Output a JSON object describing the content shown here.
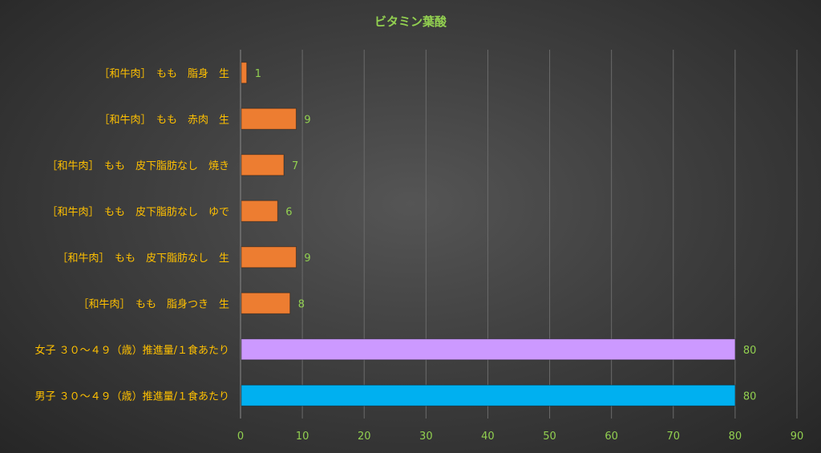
{
  "chart_data": {
    "type": "bar",
    "orientation": "horizontal",
    "title": "ビタミン葉酸",
    "xlabel": "",
    "ylabel": "",
    "xlim": [
      0,
      90
    ],
    "xticks": [
      0,
      10,
      20,
      30,
      40,
      50,
      60,
      70,
      80,
      90
    ],
    "grid": true,
    "legend": "none",
    "categories": [
      "［和牛肉］　もも　脂身　生",
      "［和牛肉］　もも　赤肉　生",
      "［和牛肉］　もも　皮下脂肪なし　焼き",
      "［和牛肉］　もも　皮下脂肪なし　ゆで",
      "［和牛肉］　もも　皮下脂肪なし　生",
      "［和牛肉］　もも　脂身つき　生",
      "女子 ３０～４９（歳）推進量/１食あたり",
      "男子 ３０～４９（歳）推進量/１食あたり"
    ],
    "values": [
      1,
      9,
      7,
      6,
      9,
      8,
      80,
      80
    ],
    "colors": [
      "#ed7d31",
      "#ed7d31",
      "#ed7d31",
      "#ed7d31",
      "#ed7d31",
      "#ed7d31",
      "#cc99ff",
      "#00b0f0"
    ],
    "data_labels": [
      "1",
      "9",
      "7",
      "6",
      "9",
      "8",
      "80",
      "80"
    ]
  }
}
